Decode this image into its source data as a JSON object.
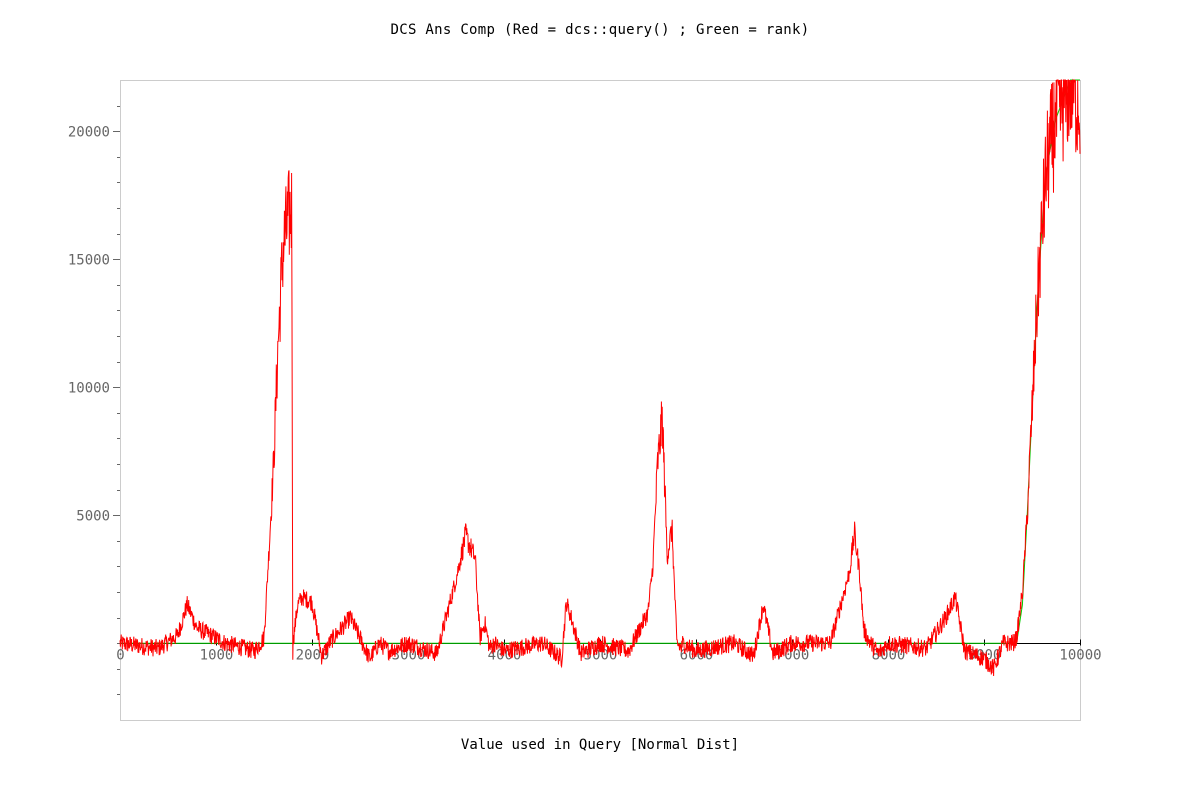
{
  "chart_data": {
    "type": "line",
    "title": "DCS Ans Comp (Red = dcs::query() ; Green = rank)",
    "xlabel": "Value used in Query [Normal Dist]",
    "ylabel": "",
    "xlim": [
      0,
      10000
    ],
    "ylim": [
      -3000,
      22000
    ],
    "grid": false,
    "y_ticks": [
      5000,
      10000,
      15000,
      20000
    ],
    "y_tick_labels": [
      "5000",
      "10000",
      "15000",
      "20000"
    ],
    "x_ticks": [
      0,
      1000,
      2000,
      3000,
      4000,
      5000,
      6000,
      7000,
      8000,
      9000,
      10000
    ],
    "x_tick_labels": [
      "0",
      "1000",
      "2000",
      "3000",
      "4000",
      "5000",
      "6000",
      "7000",
      "8000",
      "9000",
      "10000"
    ],
    "colors": {
      "red": "#ff0000",
      "green": "#00cc00",
      "axis": "#000000",
      "frame": "#cccccc"
    },
    "series": [
      {
        "name": "Red = dcs::query()",
        "color": "#ff0000",
        "x": [
          0,
          400,
          600,
          700,
          800,
          1100,
          1400,
          1500,
          1550,
          1600,
          1650,
          1700,
          1750,
          1790,
          1800,
          1801,
          1850,
          1900,
          2000,
          2100,
          2200,
          2400,
          2600,
          2700,
          2800,
          3000,
          3300,
          3500,
          3600,
          3700,
          3750,
          3800,
          3850,
          3900,
          4000,
          4400,
          4600,
          4650,
          4700,
          4800,
          5000,
          5300,
          5500,
          5550,
          5600,
          5650,
          5700,
          5750,
          5800,
          5850,
          5860,
          6000,
          6400,
          6600,
          6700,
          6800,
          7000,
          7400,
          7600,
          7650,
          7700,
          7750,
          7800,
          7900,
          8000,
          8400,
          8600,
          8700,
          8800,
          9000,
          9100,
          9200,
          9300,
          9340,
          9400,
          9450,
          9500,
          9550,
          9600,
          9650,
          9700,
          9750,
          9800,
          9850,
          9900,
          9950,
          10000
        ],
        "values": [
          0,
          -200,
          300,
          1500,
          600,
          0,
          -300,
          200,
          3500,
          7000,
          12000,
          15500,
          16500,
          17000,
          -400,
          0,
          1500,
          1800,
          1600,
          -500,
          100,
          1000,
          -600,
          0,
          -300,
          0,
          -400,
          2500,
          4200,
          3300,
          200,
          800,
          -200,
          0,
          -300,
          0,
          -600,
          1600,
          1000,
          -400,
          0,
          -300,
          1200,
          3000,
          7000,
          8800,
          3400,
          4500,
          0,
          -200,
          0,
          -300,
          0,
          -500,
          1500,
          -400,
          0,
          0,
          2800,
          4300,
          2900,
          500,
          100,
          -400,
          0,
          -200,
          1000,
          1800,
          -300,
          -600,
          -1000,
          0,
          0,
          200,
          2000,
          5000,
          9000,
          13000,
          16000,
          18500,
          19500,
          20500,
          21000,
          21500,
          22000,
          21500,
          21200
        ]
      },
      {
        "name": "Green = rank",
        "color": "#00cc00",
        "x": [
          0,
          9340,
          9400,
          9450,
          9500,
          9550,
          9600,
          9650,
          9700,
          9750,
          9800,
          9850,
          9900,
          9950,
          10000
        ],
        "values": [
          0,
          0,
          1500,
          5000,
          9000,
          13000,
          16000,
          18500,
          19500,
          20500,
          21000,
          21500,
          22000,
          22000,
          22000
        ]
      }
    ]
  }
}
